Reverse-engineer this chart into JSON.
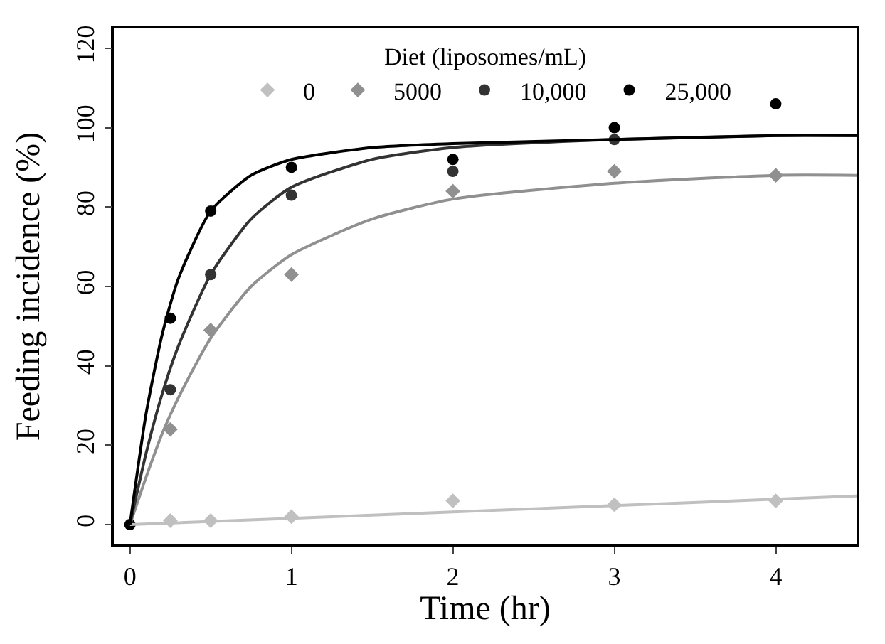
{
  "chart_data": {
    "type": "scatter",
    "xlabel": "Time (hr)",
    "ylabel": "Feeding incidence (%)",
    "legend_title": "Diet (liposomes/mL)",
    "xlim": [
      -0.1,
      4.5
    ],
    "xticks": [
      0,
      1,
      2,
      3,
      4
    ],
    "ylim": [
      -5,
      125
    ],
    "yticks": [
      0,
      20,
      40,
      60,
      80,
      100,
      120
    ],
    "grid": false,
    "legend": "top",
    "series": [
      {
        "name": "0",
        "color": "#c0c0c0",
        "marker": "diamond",
        "x": [
          0.25,
          0.5,
          1,
          2,
          3,
          4
        ],
        "values": [
          1,
          1,
          2,
          6,
          5,
          6
        ]
      },
      {
        "name": "5000",
        "color": "#909090",
        "marker": "diamond",
        "x": [
          0.25,
          0.5,
          1,
          2,
          3,
          4
        ],
        "values": [
          24,
          49,
          63,
          84,
          89,
          88
        ]
      },
      {
        "name": "10,000",
        "color": "#333333",
        "marker": "circle",
        "x": [
          0.25,
          0.5,
          1,
          2,
          3
        ],
        "values": [
          34,
          63,
          83,
          89,
          97
        ]
      },
      {
        "name": "25,000",
        "color": "#000000",
        "marker": "circle",
        "x": [
          0,
          0.25,
          0.5,
          1,
          2,
          3,
          4
        ],
        "values": [
          0,
          52,
          79,
          90,
          92,
          100,
          106
        ]
      },
      {
        "type": "line",
        "color": "#c0c0c0",
        "marker": "none",
        "x": [
          0,
          1,
          2,
          3,
          4,
          4.5
        ],
        "values": [
          0,
          1.6,
          3.2,
          4.8,
          6.4,
          7.2
        ]
      },
      {
        "type": "line",
        "color": "#909090",
        "marker": "none",
        "x": [
          0,
          0.1,
          0.2,
          0.3,
          0.5,
          0.75,
          1,
          1.5,
          2,
          3,
          4,
          4.5
        ],
        "values": [
          0,
          12,
          23,
          32,
          47,
          60,
          68,
          77,
          82,
          86,
          88,
          88
        ]
      },
      {
        "type": "line",
        "color": "#333333",
        "marker": "none",
        "x": [
          0,
          0.1,
          0.2,
          0.3,
          0.5,
          0.75,
          1,
          1.5,
          2,
          3,
          4,
          4.5
        ],
        "values": [
          0,
          18,
          33,
          45,
          63,
          77,
          85,
          92,
          95,
          97,
          98,
          98
        ]
      },
      {
        "type": "line",
        "color": "#000000",
        "marker": "none",
        "x": [
          0,
          0.1,
          0.2,
          0.3,
          0.5,
          0.75,
          1,
          1.5,
          2,
          3,
          4,
          4.5
        ],
        "values": [
          0,
          28,
          48,
          62,
          79,
          88,
          92,
          95,
          96,
          97,
          98,
          98
        ]
      }
    ]
  }
}
